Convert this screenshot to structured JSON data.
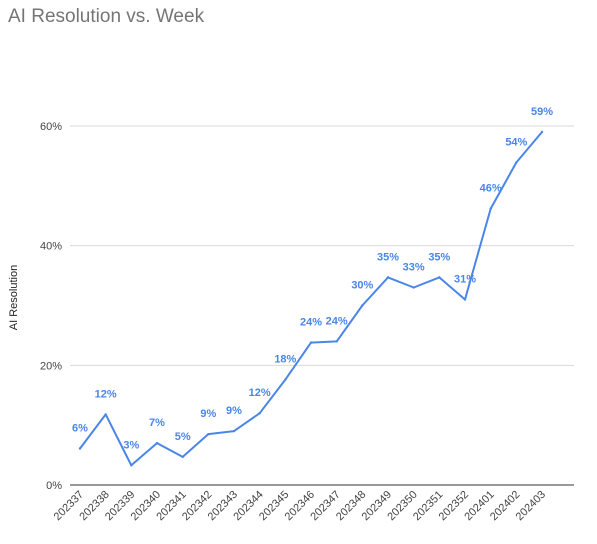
{
  "chart_data": {
    "type": "line",
    "title": "AI Resolution vs. Week",
    "xlabel": "",
    "ylabel": "AI Resolution",
    "categories": [
      "202337",
      "202338",
      "202339",
      "202340",
      "202341",
      "202342",
      "202343",
      "202344",
      "202345",
      "202346",
      "202347",
      "202348",
      "202349",
      "202350",
      "202351",
      "202352",
      "202401",
      "202402",
      "202403"
    ],
    "series": [
      {
        "values": [
          6.1,
          11.8,
          3.3,
          7.0,
          4.7,
          8.5,
          9.0,
          12.0,
          17.6,
          23.8,
          24.0,
          30.0,
          34.7,
          33.0,
          34.7,
          31.0,
          46.2,
          53.9,
          59.0
        ],
        "labels": [
          "6%",
          "12%",
          "3%",
          "7%",
          "5%",
          "9%",
          "9%",
          "12%",
          "18%",
          "24%",
          "24%",
          "30%",
          "35%",
          "33%",
          "35%",
          "31%",
          "46%",
          "54%",
          "59%"
        ]
      }
    ],
    "ylim": [
      0,
      60
    ],
    "yticks": [
      0,
      20,
      40,
      60
    ],
    "ytick_labels": [
      "0%",
      "20%",
      "40%",
      "60%"
    ],
    "grid": true,
    "legend": "none",
    "colors": {
      "line": "#4a86e8",
      "grid": "#d9d9d9",
      "axis": "#333333",
      "label": "#4a86e8"
    }
  }
}
